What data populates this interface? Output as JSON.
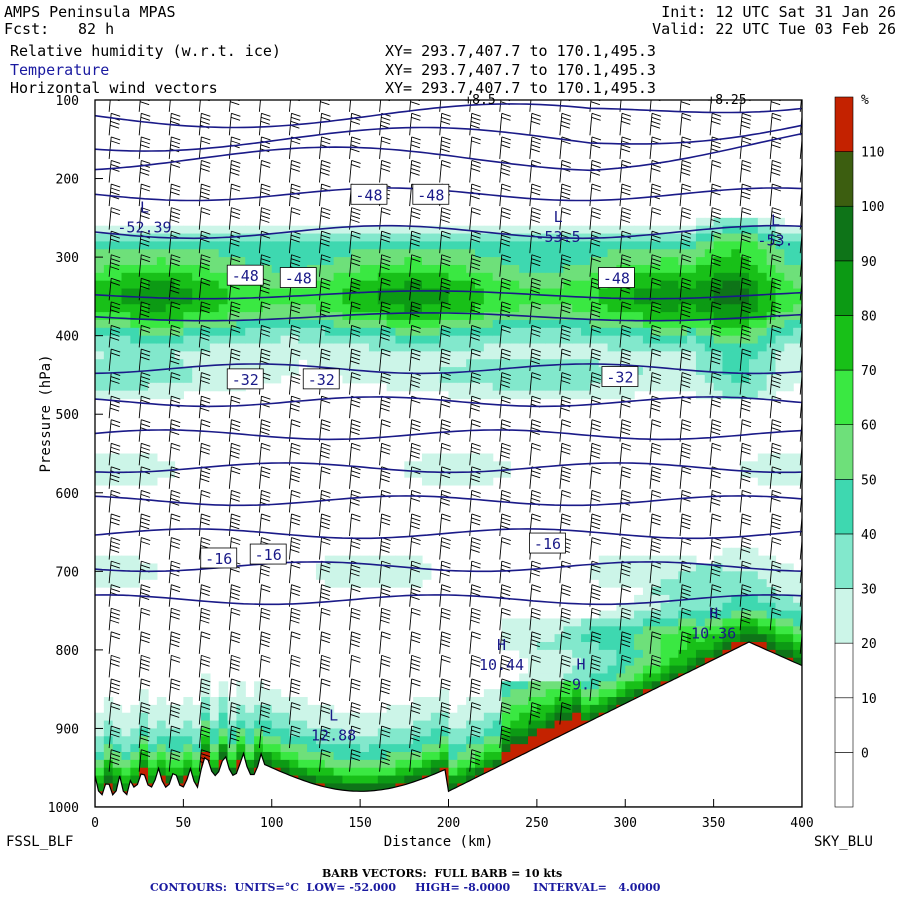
{
  "header": {
    "model": "AMPS Peninsula MPAS",
    "fcst_label": "Fcst:",
    "fcst_value": "82 h",
    "init": "Init: 12 UTC Sat 31 Jan 26",
    "valid": "Valid: 22 UTC Tue 03 Feb 26",
    "fields": [
      {
        "name": "Relative humidity (w.r.t. ice)",
        "xy": "XY= 293.7,407.7 to 170.1,495.3"
      },
      {
        "name": "Temperature",
        "xy": "XY= 293.7,407.7 to 170.1,495.3"
      },
      {
        "name": "Horizontal wind vectors",
        "xy": "XY= 293.7,407.7 to 170.1,495.3"
      }
    ]
  },
  "colors": {
    "contour": "#1a1a88",
    "terrain": "#ffffff",
    "red": "#c42200",
    "field_blue": "#1a1aa0"
  },
  "chart_data": {
    "type": "heatmap",
    "title": "Cross-section: Relative humidity (w.r.t. ice), Temperature, Horizontal wind vectors",
    "xlabel": "Distance (km)",
    "ylabel": "Pressure (hPa)",
    "xlim": [
      0,
      400
    ],
    "ylim": [
      1000,
      100
    ],
    "x_ticks": [
      0,
      50,
      100,
      150,
      200,
      250,
      300,
      350,
      400
    ],
    "y_ticks": [
      100,
      200,
      300,
      400,
      500,
      600,
      700,
      800,
      900,
      1000
    ],
    "endpoints": {
      "left": "FSSL_BLF",
      "right": "SKY_BLU"
    },
    "colorbar": {
      "unit": "%",
      "levels": [
        0,
        10,
        20,
        30,
        40,
        50,
        60,
        70,
        80,
        90,
        100,
        110
      ],
      "colors": [
        "#ffffff",
        "#ffffff",
        "#ffffff",
        "#ccf5e8",
        "#82e8cc",
        "#3ed8b0",
        "#6ee07a",
        "#3ae842",
        "#18c018",
        "#0c9a14",
        "#0e7418",
        "#3c5e10",
        "#c42200"
      ]
    },
    "temperature_contours": {
      "units": "°C",
      "low": -52.0,
      "high": -8.0,
      "interval": 4.0,
      "levels": [
        -52,
        -48,
        -44,
        -40,
        -36,
        -32,
        -28,
        -24,
        -20,
        -16,
        -12,
        -8
      ]
    },
    "temperature_labels": [
      {
        "text": "-48",
        "x": 155,
        "p": 220
      },
      {
        "text": "-48",
        "x": 190,
        "p": 220
      },
      {
        "text": "-48",
        "x": 85,
        "p": 323
      },
      {
        "text": "-48",
        "x": 115,
        "p": 326
      },
      {
        "text": "-48",
        "x": 295,
        "p": 326
      },
      {
        "text": "-32",
        "x": 85,
        "p": 455
      },
      {
        "text": "-32",
        "x": 128,
        "p": 455
      },
      {
        "text": "-32",
        "x": 297,
        "p": 452
      },
      {
        "text": "-16",
        "x": 70,
        "p": 683
      },
      {
        "text": "-16",
        "x": 98,
        "p": 678
      },
      {
        "text": "-16",
        "x": 256,
        "p": 664
      }
    ],
    "extrema": [
      {
        "type": "L",
        "value": "-52.39",
        "x": 28,
        "p": 243
      },
      {
        "type": "L",
        "value": "-53.5",
        "x": 262,
        "p": 255
      },
      {
        "type": "L",
        "value": "-53.",
        "x": 385,
        "p": 260
      },
      {
        "type": "H",
        "value": "10.44",
        "x": 230,
        "p": 800
      },
      {
        "type": "H",
        "value": "9.",
        "x": 275,
        "p": 825
      },
      {
        "type": "H",
        "value": "10.36",
        "x": 350,
        "p": 760
      },
      {
        "type": "L",
        "value": "12.88",
        "x": 135,
        "p": 890
      }
    ],
    "top_labels": [
      "+8.5",
      "+8.25"
    ],
    "legend": "barbs",
    "footer": {
      "barb": "BARB VECTORS:  FULL BARB = 10 kts",
      "contours": "CONTOURS:  UNITS=°C  LOW= -52.000     HIGH= -8.0000      INTERVAL=   4.0000"
    }
  }
}
